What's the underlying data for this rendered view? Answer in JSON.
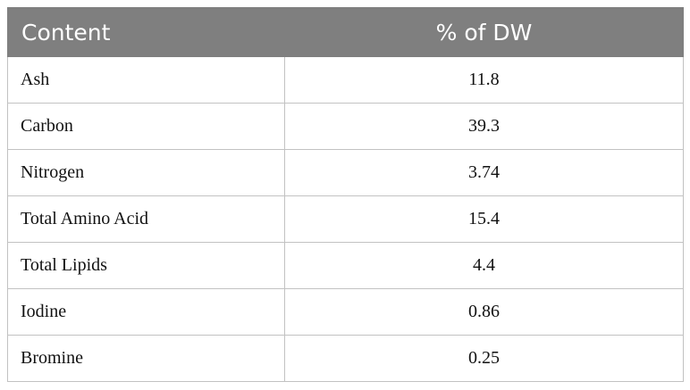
{
  "table": {
    "headers": [
      "Content",
      "% of DW"
    ],
    "rows": [
      {
        "label": "Ash",
        "value": "11.8"
      },
      {
        "label": "Carbon",
        "value": "39.3"
      },
      {
        "label": "Nitrogen",
        "value": "3.74"
      },
      {
        "label": "Total Amino Acid",
        "value": "15.4"
      },
      {
        "label": "Total Lipids",
        "value": "4.4"
      },
      {
        "label": "Iodine",
        "value": "0.86"
      },
      {
        "label": "Bromine",
        "value": "0.25"
      }
    ]
  },
  "colors": {
    "header_background": "#7f7f7f",
    "header_text": "#ffffff",
    "grid_lines": "#c2c2c2"
  }
}
